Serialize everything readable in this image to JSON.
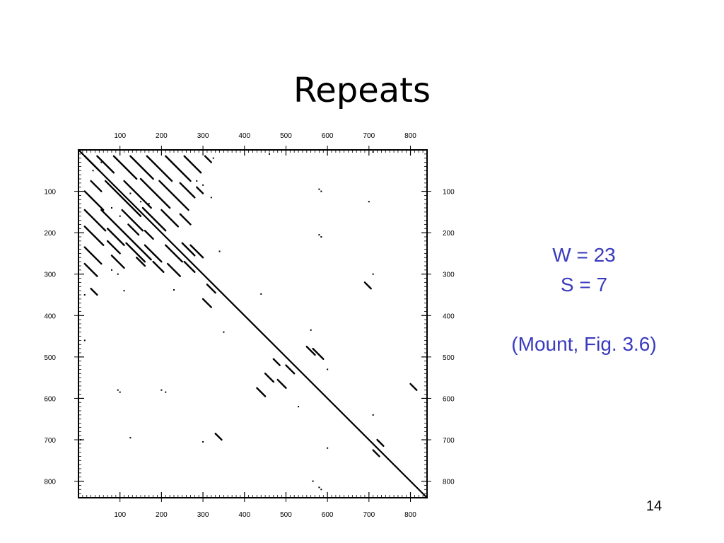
{
  "slide": {
    "title": "Repeats",
    "params": [
      "W = 23",
      "S = 7"
    ],
    "citation": "(Mount, Fig. 3.6)",
    "page_number": "14",
    "accent_color": "#3a3abf"
  },
  "chart_data": {
    "type": "scatter",
    "description_kind": "dot-plot of a sequence against itself",
    "xlim": [
      0,
      840
    ],
    "ylim": [
      0,
      840
    ],
    "y_axis_inverted": true,
    "ticks": [
      100,
      200,
      300,
      400,
      500,
      600,
      700,
      800
    ],
    "tick_labels": [
      "100",
      "200",
      "300",
      "400",
      "500",
      "600",
      "700",
      "800"
    ],
    "segments": [
      [
        0,
        0,
        840,
        840
      ],
      [
        15,
        15,
        50,
        50
      ],
      [
        45,
        15,
        85,
        55
      ],
      [
        85,
        15,
        140,
        70
      ],
      [
        125,
        15,
        180,
        70
      ],
      [
        165,
        15,
        225,
        75
      ],
      [
        210,
        15,
        270,
        75
      ],
      [
        255,
        15,
        295,
        55
      ],
      [
        305,
        15,
        320,
        30
      ],
      [
        30,
        75,
        55,
        100
      ],
      [
        15,
        100,
        60,
        145
      ],
      [
        65,
        75,
        150,
        160
      ],
      [
        110,
        75,
        175,
        140
      ],
      [
        150,
        70,
        220,
        140
      ],
      [
        195,
        75,
        265,
        145
      ],
      [
        245,
        80,
        280,
        115
      ],
      [
        285,
        90,
        300,
        105
      ],
      [
        15,
        145,
        65,
        195
      ],
      [
        55,
        145,
        175,
        265
      ],
      [
        105,
        145,
        155,
        195
      ],
      [
        155,
        140,
        210,
        195
      ],
      [
        200,
        145,
        240,
        185
      ],
      [
        245,
        155,
        270,
        180
      ],
      [
        15,
        185,
        60,
        230
      ],
      [
        70,
        190,
        110,
        230
      ],
      [
        120,
        180,
        145,
        205
      ],
      [
        160,
        195,
        180,
        215
      ],
      [
        15,
        235,
        55,
        275
      ],
      [
        70,
        220,
        100,
        250
      ],
      [
        115,
        225,
        160,
        270
      ],
      [
        160,
        230,
        200,
        270
      ],
      [
        210,
        230,
        250,
        270
      ],
      [
        250,
        225,
        280,
        255
      ],
      [
        270,
        230,
        300,
        260
      ],
      [
        15,
        275,
        45,
        305
      ],
      [
        80,
        255,
        110,
        285
      ],
      [
        140,
        260,
        160,
        280
      ],
      [
        180,
        270,
        205,
        295
      ],
      [
        215,
        275,
        245,
        305
      ],
      [
        255,
        270,
        280,
        295
      ],
      [
        30,
        335,
        45,
        350
      ],
      [
        310,
        325,
        330,
        345
      ],
      [
        300,
        360,
        320,
        380
      ],
      [
        550,
        475,
        570,
        495
      ],
      [
        565,
        480,
        590,
        505
      ],
      [
        470,
        505,
        485,
        520
      ],
      [
        500,
        520,
        520,
        540
      ],
      [
        450,
        540,
        470,
        560
      ],
      [
        480,
        555,
        500,
        575
      ],
      [
        430,
        575,
        450,
        595
      ],
      [
        690,
        320,
        705,
        335
      ],
      [
        720,
        700,
        735,
        715
      ],
      [
        710,
        725,
        725,
        740
      ],
      [
        330,
        685,
        345,
        700
      ],
      [
        800,
        565,
        815,
        580
      ]
    ],
    "points": [
      [
        55,
        30
      ],
      [
        35,
        50
      ],
      [
        325,
        20
      ],
      [
        460,
        10
      ],
      [
        710,
        5
      ],
      [
        125,
        105
      ],
      [
        150,
        125
      ],
      [
        170,
        130
      ],
      [
        80,
        140
      ],
      [
        100,
        160
      ],
      [
        285,
        75
      ],
      [
        300,
        85
      ],
      [
        320,
        115
      ],
      [
        580,
        95
      ],
      [
        585,
        100
      ],
      [
        700,
        125
      ],
      [
        585,
        210
      ],
      [
        580,
        205
      ],
      [
        340,
        245
      ],
      [
        710,
        300
      ],
      [
        80,
        290
      ],
      [
        95,
        300
      ],
      [
        230,
        338
      ],
      [
        110,
        340
      ],
      [
        440,
        348
      ],
      [
        15,
        350
      ],
      [
        560,
        435
      ],
      [
        350,
        440
      ],
      [
        15,
        460
      ],
      [
        600,
        530
      ],
      [
        100,
        585
      ],
      [
        95,
        580
      ],
      [
        210,
        585
      ],
      [
        200,
        580
      ],
      [
        530,
        620
      ],
      [
        710,
        640
      ],
      [
        600,
        720
      ],
      [
        5,
        700
      ],
      [
        125,
        695
      ],
      [
        300,
        705
      ],
      [
        565,
        800
      ],
      [
        580,
        815
      ],
      [
        585,
        820
      ]
    ]
  }
}
